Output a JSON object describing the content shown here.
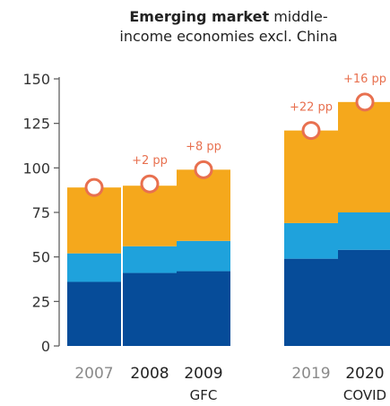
{
  "chart_data": {
    "type": "bar",
    "stacked": true,
    "title": "Emerging market middle-income economies excl. China",
    "title_lines": [
      {
        "bold": "Emerging market",
        "normal": " middle-"
      },
      {
        "bold": "",
        "normal": "income economies excl. China"
      }
    ],
    "categories": [
      "2007",
      "2008",
      "2009",
      "2019",
      "2020"
    ],
    "category_sublabels": [
      "",
      "",
      "GFC",
      "",
      "COVID"
    ],
    "category_muted": [
      true,
      false,
      false,
      true,
      false
    ],
    "ylim": [
      0,
      150
    ],
    "yticks": [
      0,
      25,
      50,
      75,
      100,
      125,
      150
    ],
    "grid": false,
    "series": [
      {
        "values": [
          36,
          41,
          42,
          49,
          54
        ]
      },
      {
        "values": [
          16,
          15,
          17,
          20,
          21
        ]
      },
      {
        "values": [
          37,
          34,
          40,
          52,
          62
        ]
      }
    ],
    "markers": [
      89,
      91,
      99,
      121,
      137
    ],
    "annotations": [
      "",
      "+2 pp",
      "+8 pp",
      "+22 pp",
      "+16 pp"
    ],
    "colors": {
      "series": [
        "#064c99",
        "#1fa2dc",
        "#f5a81c"
      ],
      "marker_stroke": "#e8704f",
      "marker_fill": "#ffffff",
      "annotation": "#e8704f",
      "axis": "#555555",
      "muted_label": "#8a8a8a",
      "label": "#222222"
    }
  }
}
